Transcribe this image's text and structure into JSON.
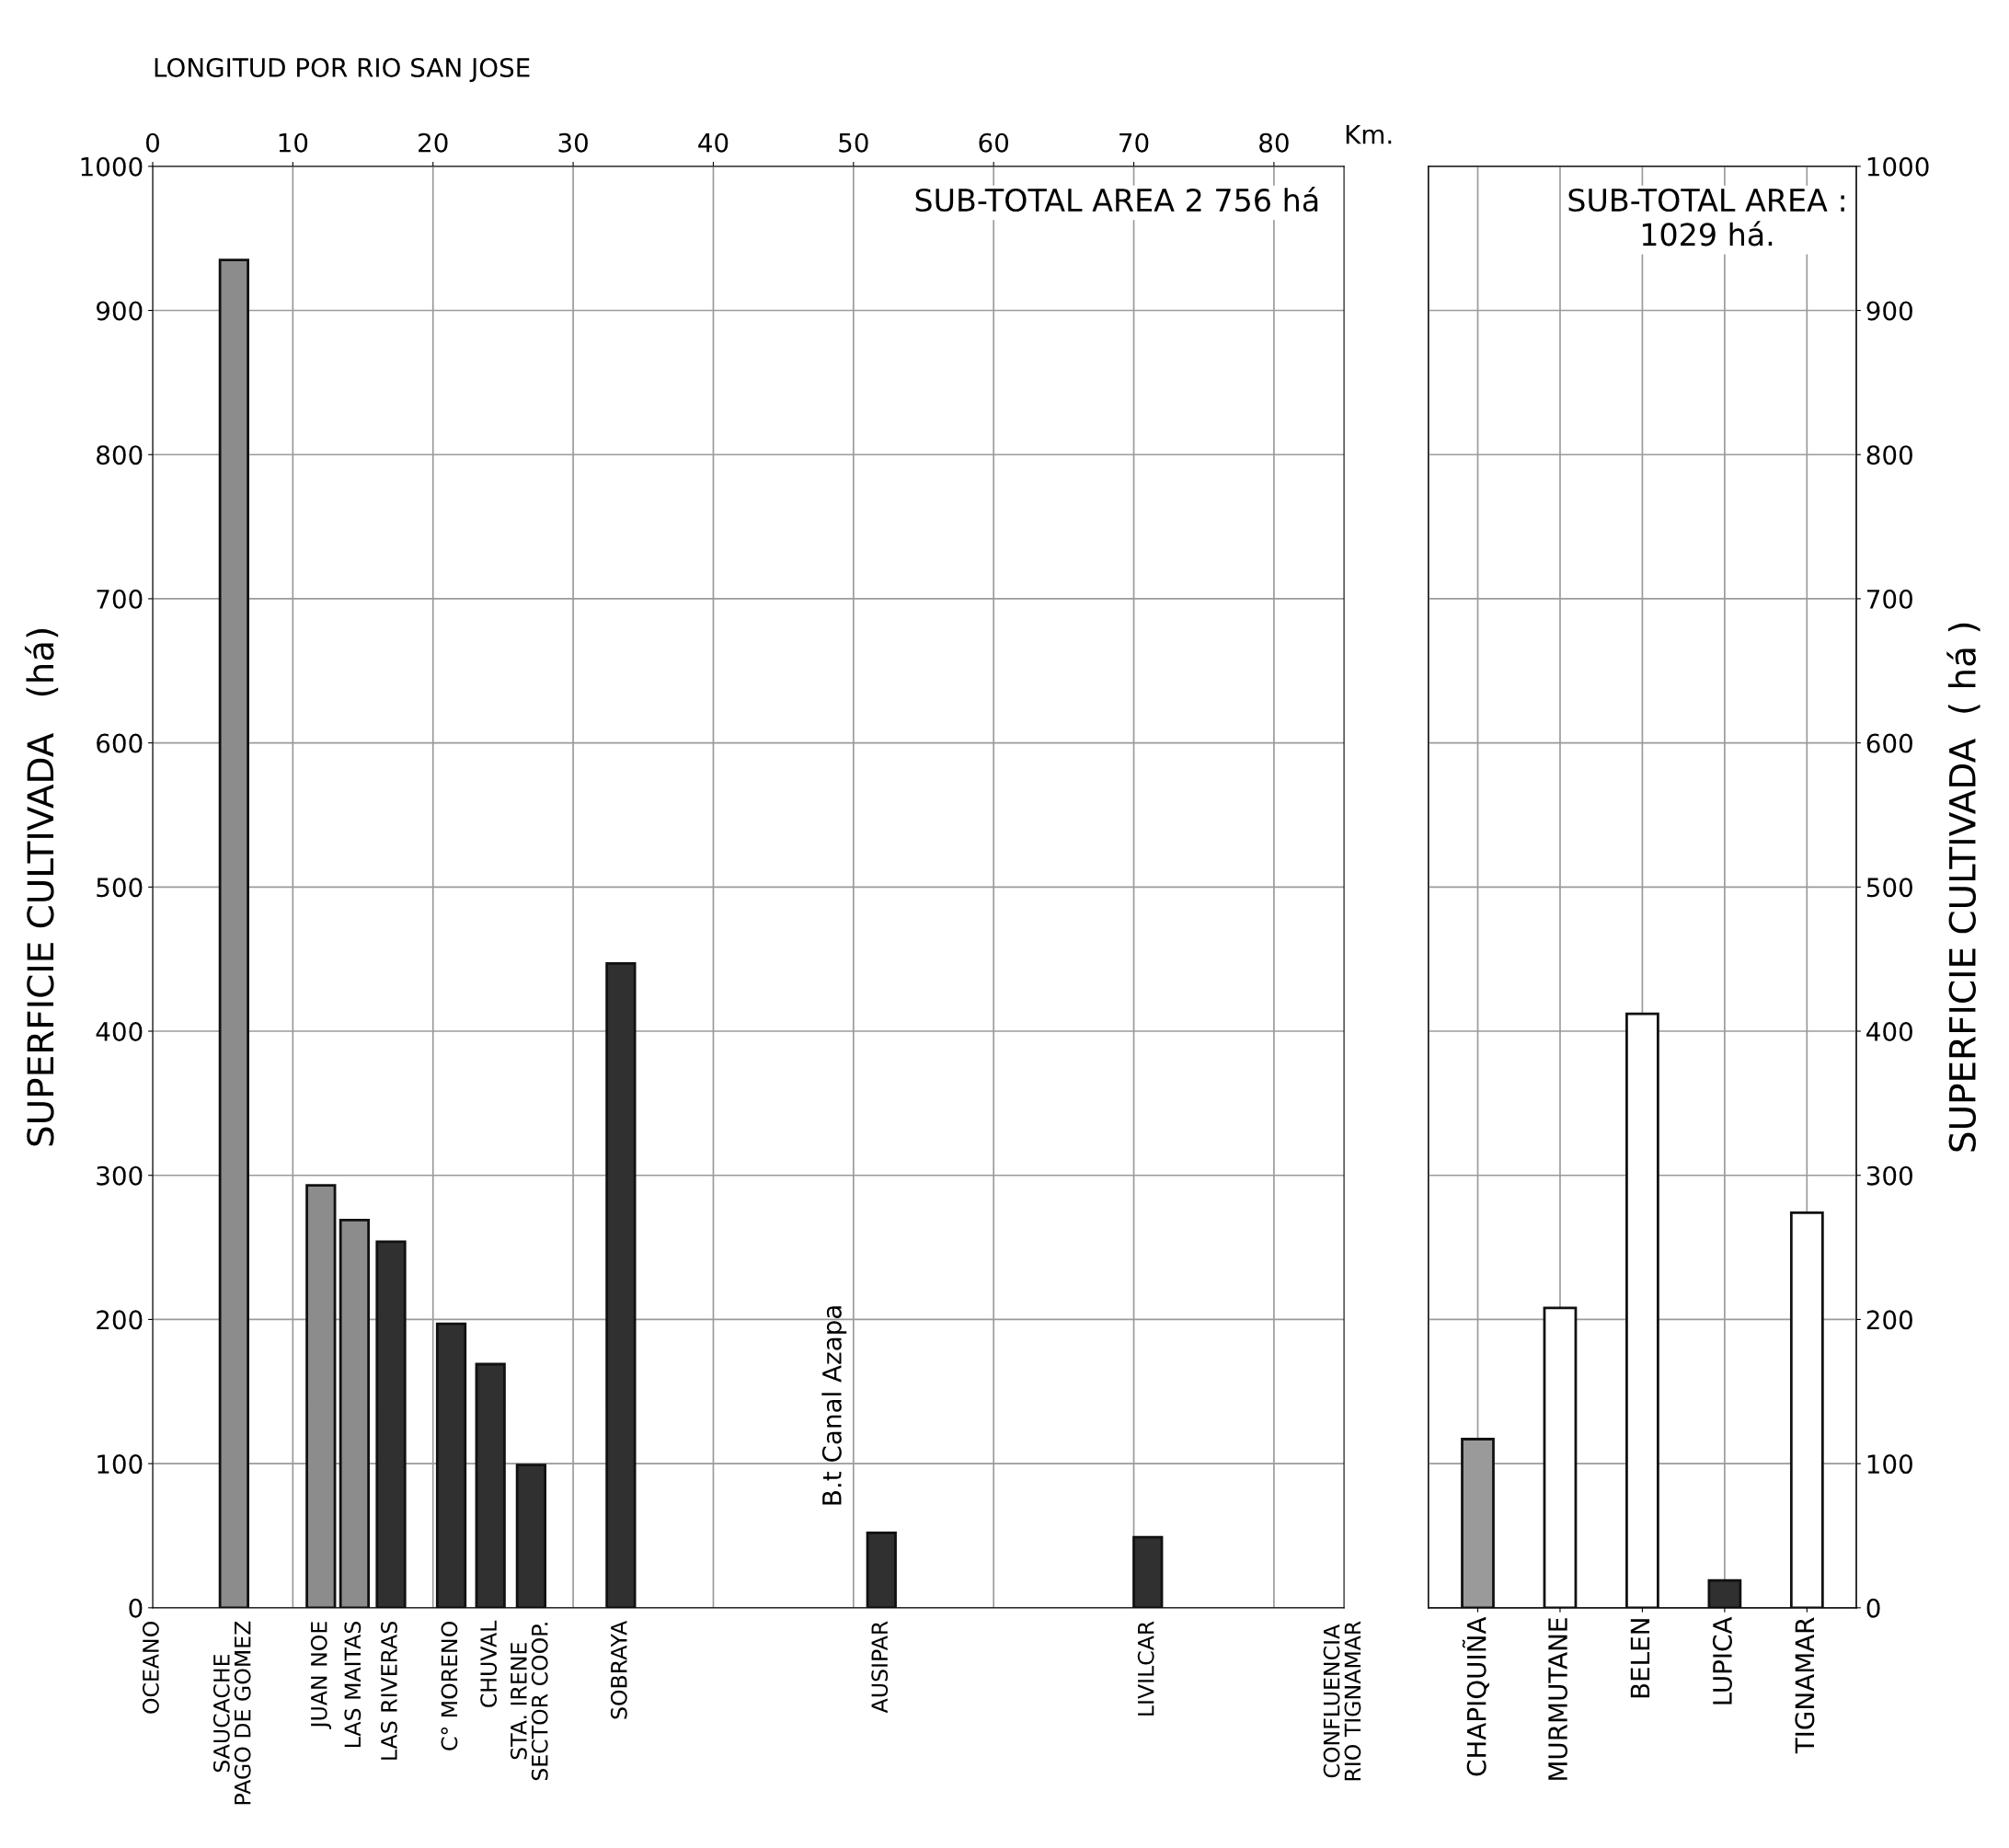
{
  "chart_data": [
    {
      "type": "bar",
      "title": "LONGITUD POR RIO SAN JOSE",
      "ylabel": "SUPERFICIE CULTIVADA   (há)",
      "xlabel": "Km.",
      "x": [
        5.8,
        12,
        14.4,
        17,
        21.3,
        24.1,
        27,
        33.4,
        52,
        71
      ],
      "values": [
        935,
        293,
        269,
        254,
        197,
        169,
        99,
        447,
        52,
        49
      ],
      "colors": [
        "#8c8c8c",
        "#8c8c8c",
        "#8c8c8c",
        "#303030",
        "#303030",
        "#303030",
        "#303030",
        "#303030",
        "#303030",
        "#303030"
      ],
      "xlim": [
        0,
        85
      ],
      "xticks": [
        0,
        10,
        20,
        30,
        40,
        50,
        60,
        70,
        80
      ],
      "ylim": [
        0,
        1000
      ],
      "yticks": [
        0,
        100,
        200,
        300,
        400,
        500,
        600,
        700,
        800,
        900,
        1000
      ],
      "grid": true,
      "annotations": [
        "SUB-TOTAL AREA 2 756 há",
        "B.t Canal Azapa",
        "OCEANO",
        "CONFLUENCIA\nRIO TIGNAMAR",
        {
          "text": "SAUCACHE\nPAGO DE GOMEZ",
          "x": 5.8,
          "y": 0
        },
        {
          "text": "JUAN NOE",
          "x": 12,
          "y": 0
        },
        {
          "text": "LAS MAITAS",
          "x": 14.4,
          "y": 0
        },
        {
          "text": "LAS RIVERAS",
          "x": 17,
          "y": 0
        },
        {
          "text": "C° MORENO",
          "x": 21.3,
          "y": 0
        },
        {
          "text": "CHUVAL",
          "x": 24.1,
          "y": 0
        },
        {
          "text": "STA. IRENE\nSECTOR COOP.",
          "x": 27,
          "y": 0
        },
        {
          "text": "SOBRAYA",
          "x": 33.4,
          "y": 0
        },
        {
          "text": "AUSIPAR",
          "x": 52,
          "y": 0
        },
        {
          "text": "LIVILCAR",
          "x": 71,
          "y": 0
        }
      ]
    },
    {
      "type": "bar",
      "y2label": "SUPERFICIE CULTIVADA  ( há )",
      "categories": [
        "CHAPIQUIÑA",
        "MURMUTANE",
        "BELEN",
        "LUPICA",
        "TIGNAMAR"
      ],
      "series": [
        {
          "values": [
            117,
            208,
            412,
            19,
            274
          ],
          "colors": [
            "#9a9a9a",
            "#ffffff",
            "#ffffff",
            "#303030",
            "#ffffff"
          ],
          "axis": "y2"
        }
      ],
      "y2lim": [
        0,
        1000
      ],
      "y2ticks": [
        0,
        100,
        200,
        300,
        400,
        500,
        600,
        700,
        800,
        900,
        1000
      ],
      "grid": true,
      "annotations": [
        "SUB-TOTAL AREA :\n1029 há."
      ]
    }
  ]
}
